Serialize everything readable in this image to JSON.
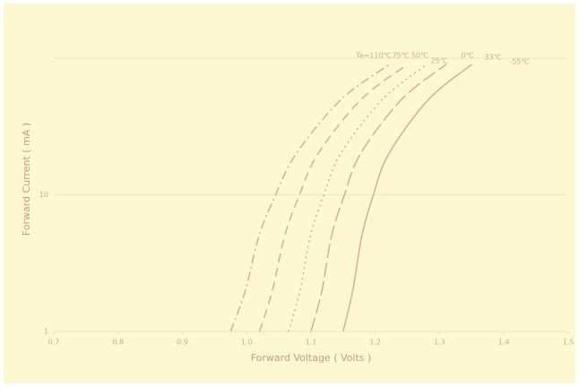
{
  "chart_data": {
    "type": "line",
    "x_label": "Forward Voltage ( Volts )",
    "y_label": "Forward Current ( mA )",
    "log_y": true,
    "grid": true,
    "color": "#d6a98c",
    "xlim": [
      0.7,
      1.5
    ],
    "xticks": [
      0.7,
      0.8,
      0.9,
      {
        "value": 1,
        "label": "1.0"
      },
      1.1,
      1.2,
      1.3,
      1.4,
      1.5
    ],
    "ylim": [
      1,
      100
    ],
    "yticks": [
      1,
      10
    ],
    "series": [
      {
        "name": "Ta=110℃",
        "dash": "dashdot",
        "x": [
          0.975,
          0.998,
          1.019,
          1.045,
          1.077,
          1.147,
          1.222
        ],
        "values": [
          1,
          2,
          5,
          10,
          20,
          50,
          90
        ]
      },
      {
        "name": "75℃",
        "dash": "dash",
        "x": [
          1.02,
          1.04,
          1.059,
          1.082,
          1.111,
          1.178,
          1.25
        ],
        "values": [
          1,
          2,
          5,
          10,
          20,
          50,
          90
        ]
      },
      {
        "name": "50℃",
        "dash": "dot",
        "x": [
          1.065,
          1.083,
          1.099,
          1.12,
          1.146,
          1.211,
          1.28
        ],
        "values": [
          1,
          2,
          5,
          10,
          20,
          50,
          90
        ]
      },
      {
        "name": "25℃",
        "dash": "longdash",
        "x": [
          1.1,
          1.117,
          1.132,
          1.152,
          1.177,
          1.241,
          1.31
        ],
        "values": [
          1,
          2,
          5,
          10,
          20,
          50,
          90
        ]
      },
      {
        "name": "0℃",
        "dash": "solid",
        "x": [
          1.15,
          1.165,
          1.179,
          1.197,
          1.221,
          1.283,
          1.35
        ],
        "values": [
          1,
          2,
          5,
          10,
          20,
          50,
          90
        ]
      }
    ],
    "annotations": [
      "33℃",
      "-55℃"
    ]
  }
}
